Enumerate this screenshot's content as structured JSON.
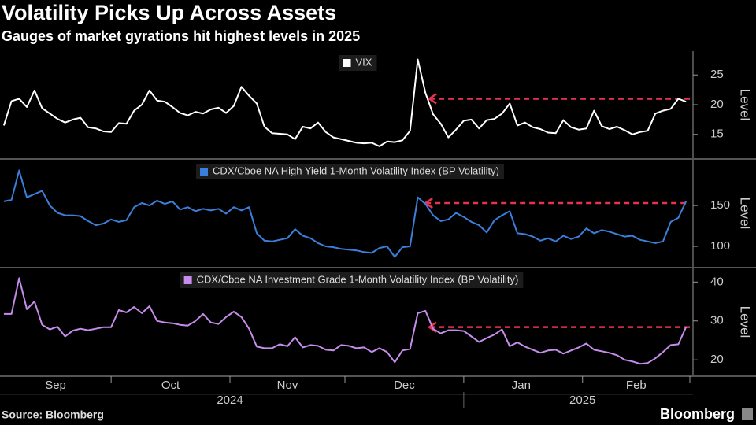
{
  "title": "Volatility Picks Up Across Assets",
  "subtitle": "Gauges of market gyrations hit highest levels in 2025",
  "source": "Source: Bloomberg",
  "brand": "Bloomberg",
  "x_axis": {
    "x": [
      2,
      4,
      6,
      8,
      10,
      12,
      14,
      16,
      18,
      20,
      22,
      24,
      26,
      28,
      30,
      32,
      34,
      36,
      38,
      40,
      42,
      44,
      46,
      48,
      50,
      52,
      54,
      56,
      58,
      60,
      62,
      64,
      66,
      68,
      70,
      72,
      74,
      76,
      78,
      80,
      82,
      84,
      86,
      88,
      90,
      92,
      94,
      96,
      98,
      100,
      102,
      104,
      106,
      108,
      110,
      112,
      114,
      116,
      118,
      120,
      122,
      124,
      126,
      128,
      130,
      132,
      134,
      136,
      138,
      140,
      142,
      144,
      146,
      148,
      150,
      152,
      154,
      156,
      158,
      160,
      162,
      164,
      166,
      168,
      170,
      172,
      174,
      176,
      178,
      180
    ],
    "xlim": [
      1,
      181
    ],
    "xticks": [
      {
        "value": 15.5,
        "label": "Sep"
      },
      {
        "value": 45.5,
        "label": "Oct"
      },
      {
        "value": 76,
        "label": "Nov"
      },
      {
        "value": 106.5,
        "label": "Dec"
      },
      {
        "value": 137,
        "label": "Jan"
      },
      {
        "value": 167,
        "label": "Feb"
      }
    ],
    "dividers": [
      30,
      61,
      91,
      122,
      153,
      181
    ],
    "years": [
      {
        "value": 61,
        "label": "2024"
      },
      {
        "value": 153,
        "label": "2025"
      }
    ],
    "year_divider": 122
  },
  "chart_data": [
    {
      "type": "line",
      "y_label": "Level",
      "ylim": [
        11,
        29
      ],
      "yticks": [
        15,
        20,
        25
      ],
      "reference": {
        "value": 21,
        "x_start": 113,
        "x_end": 181,
        "color": "#e8324f"
      },
      "series": [
        {
          "name": "VIX",
          "color": "#ffffff",
          "values": [
            16.5,
            20.6,
            21.0,
            19.6,
            22.4,
            19.4,
            18.5,
            17.6,
            17.0,
            17.5,
            17.8,
            16.2,
            16.0,
            15.5,
            15.4,
            16.9,
            16.8,
            19.0,
            20.0,
            22.4,
            20.7,
            20.5,
            19.6,
            18.6,
            18.2,
            18.8,
            18.5,
            19.2,
            19.5,
            18.6,
            19.8,
            23.0,
            21.5,
            20.2,
            16.3,
            15.2,
            15.1,
            15.0,
            14.2,
            16.3,
            16.0,
            17.0,
            15.4,
            14.5,
            14.2,
            13.9,
            13.6,
            13.5,
            13.6,
            13.0,
            13.8,
            13.7,
            14.0,
            15.6,
            27.6,
            22.0,
            18.4,
            16.8,
            14.5,
            15.8,
            17.3,
            17.5,
            16.0,
            17.4,
            17.6,
            18.5,
            20.2,
            16.5,
            17.0,
            16.2,
            15.9,
            15.3,
            15.2,
            17.4,
            16.2,
            15.8,
            16.0,
            19.0,
            16.4,
            15.9,
            16.3,
            15.7,
            15.0,
            15.4,
            15.6,
            18.5,
            19.0,
            19.3,
            21.0,
            20.5
          ]
        }
      ]
    },
    {
      "type": "line",
      "y_label": "Level",
      "ylim": [
        75,
        206
      ],
      "yticks": [
        100,
        150
      ],
      "reference": {
        "value": 153,
        "x_start": 112,
        "x_end": 181,
        "color": "#e8324f"
      },
      "series": [
        {
          "name": "CDX/Cboe NA High Yield 1-Month Volatility Index (BP Volatility)",
          "color": "#3b7fdc",
          "values": [
            155,
            157,
            193,
            160,
            164,
            168,
            150,
            141,
            138,
            138,
            137,
            131,
            126,
            128,
            133,
            130,
            132,
            148,
            153,
            150,
            156,
            152,
            155,
            145,
            148,
            143,
            146,
            144,
            146,
            140,
            148,
            144,
            148,
            116,
            107,
            106,
            108,
            110,
            121,
            113,
            110,
            104,
            100,
            99,
            97,
            96,
            95,
            93,
            92,
            98,
            100,
            87,
            99,
            100,
            160,
            152,
            138,
            131,
            133,
            141,
            136,
            130,
            126,
            117,
            132,
            138,
            143,
            116,
            115,
            112,
            107,
            110,
            106,
            113,
            109,
            112,
            122,
            116,
            120,
            118,
            115,
            112,
            113,
            108,
            106,
            104,
            106,
            130,
            135,
            155
          ]
        }
      ]
    },
    {
      "type": "line",
      "y_label": "Level",
      "ylim": [
        16,
        43.5
      ],
      "yticks": [
        20,
        30,
        40
      ],
      "reference": {
        "value": 28.4,
        "x_start": 113,
        "x_end": 181,
        "color": "#e8324f"
      },
      "series": [
        {
          "name": "CDX/Cboe NA Investment Grade 1-Month Volatility Index (BP Volatility)",
          "color": "#c78ded",
          "values": [
            31.8,
            31.8,
            41.0,
            33.0,
            35.0,
            29.0,
            27.8,
            28.5,
            26.0,
            27.5,
            28.0,
            27.6,
            28.0,
            28.4,
            28.4,
            32.8,
            32.2,
            33.6,
            32.0,
            33.8,
            30.0,
            29.6,
            29.4,
            29.0,
            28.8,
            30.0,
            31.8,
            29.6,
            29.2,
            31.0,
            32.4,
            31.0,
            28.0,
            23.4,
            23.0,
            23.0,
            24.0,
            23.5,
            25.8,
            23.2,
            23.8,
            23.6,
            22.6,
            22.4,
            23.8,
            23.6,
            23.0,
            23.2,
            22.0,
            23.0,
            22.0,
            19.4,
            22.4,
            22.8,
            32.0,
            32.6,
            28.0,
            26.8,
            27.6,
            27.6,
            27.4,
            26.0,
            24.6,
            25.6,
            26.5,
            27.8,
            23.5,
            24.5,
            23.4,
            22.6,
            21.8,
            22.4,
            22.6,
            21.6,
            22.4,
            23.2,
            24.2,
            22.6,
            22.2,
            21.8,
            21.2,
            20.0,
            19.6,
            19.0,
            19.2,
            20.4,
            22.0,
            23.8,
            24.0,
            28.4
          ]
        }
      ]
    }
  ]
}
